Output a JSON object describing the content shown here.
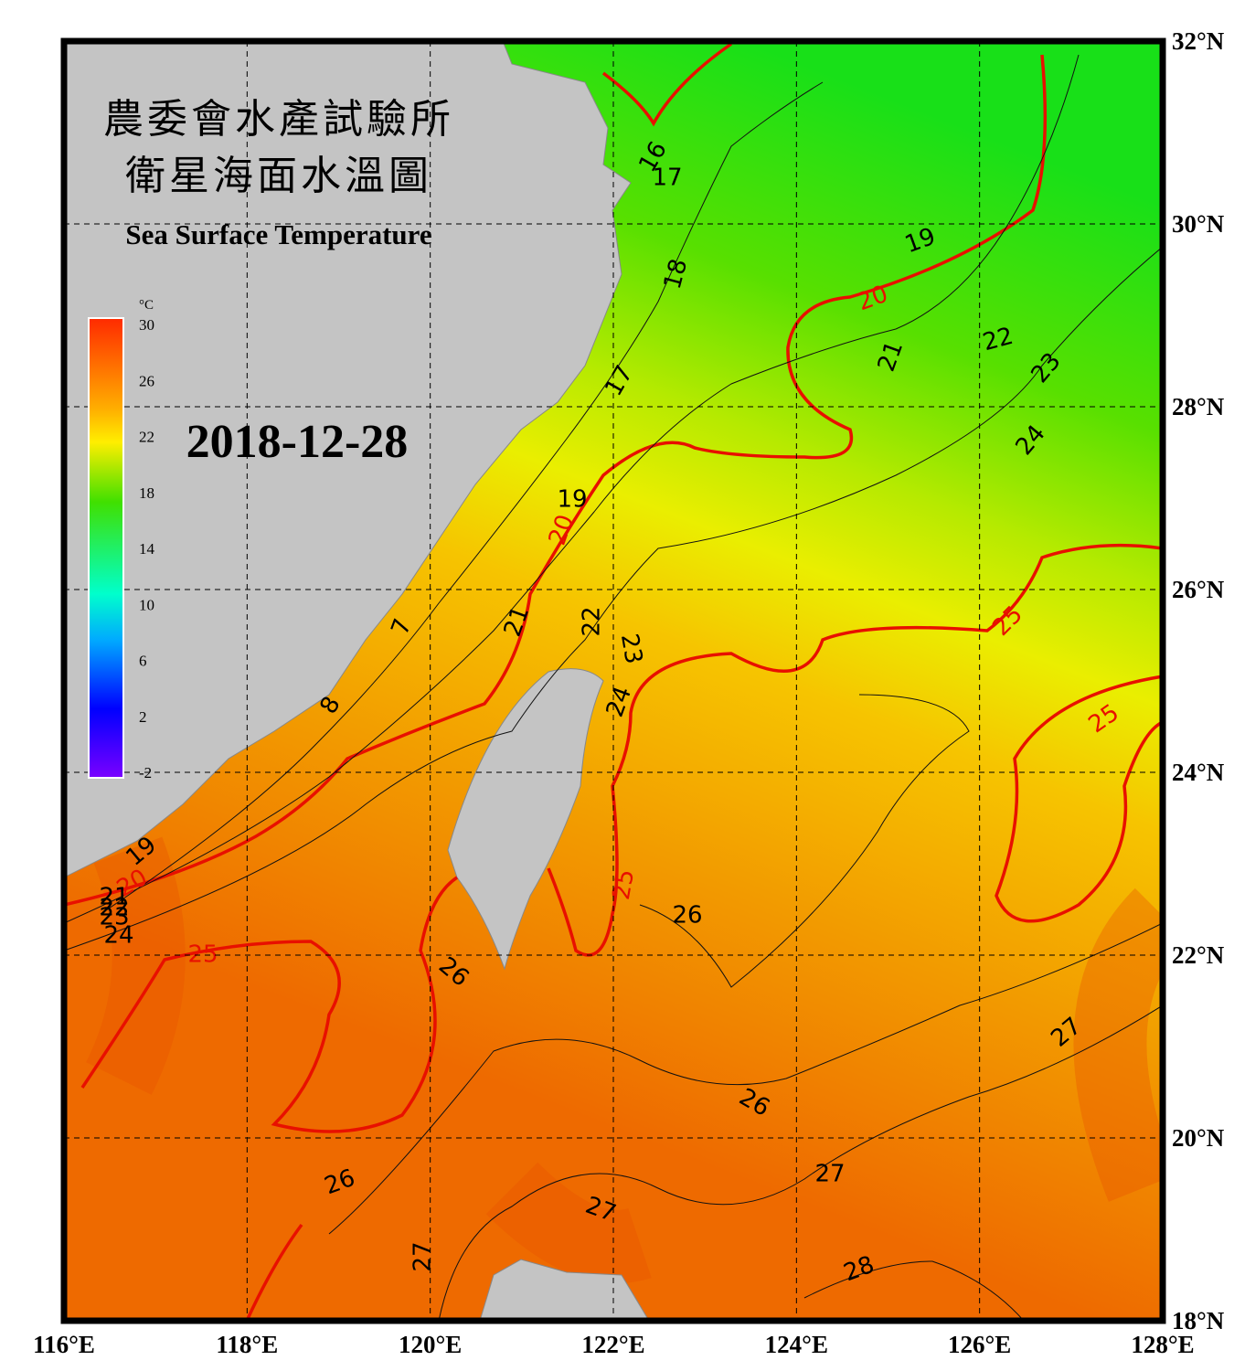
{
  "map": {
    "title_zh_1": "農委會水產試驗所",
    "title_zh_2": "衛星海面水溫圖",
    "title_en": "Sea Surface Temperature",
    "date": "2018-12-28",
    "colorbar": {
      "unit": "°C",
      "ticks": [
        30,
        26,
        22,
        18,
        14,
        10,
        6,
        2,
        -2
      ],
      "range": [
        -2,
        30
      ]
    },
    "lon_ticks": [
      {
        "value": 116,
        "label": "116°E"
      },
      {
        "value": 118,
        "label": "118°E"
      },
      {
        "value": 120,
        "label": "120°E"
      },
      {
        "value": 122,
        "label": "122°E"
      },
      {
        "value": 124,
        "label": "124°E"
      },
      {
        "value": 126,
        "label": "126°E"
      },
      {
        "value": 128,
        "label": "128°E"
      }
    ],
    "lat_ticks": [
      {
        "value": 32,
        "label": "32°N"
      },
      {
        "value": 30,
        "label": "30°N"
      },
      {
        "value": 28,
        "label": "28°N"
      },
      {
        "value": 26,
        "label": "26°N"
      },
      {
        "value": 24,
        "label": "24°N"
      },
      {
        "value": 22,
        "label": "22°N"
      },
      {
        "value": 20,
        "label": "20°N"
      },
      {
        "value": 18,
        "label": "18°N"
      }
    ],
    "lon_range": [
      116,
      128
    ],
    "lat_range": [
      18,
      32
    ],
    "contour_labels": [
      "16",
      "17",
      "18",
      "19",
      "21",
      "22",
      "23",
      "24",
      "17",
      "19",
      "21",
      "22",
      "23",
      "24",
      "8",
      "7",
      "19",
      "21",
      "22",
      "23",
      "24",
      "26",
      "26",
      "27",
      "26",
      "27",
      "26",
      "27",
      "27",
      "28"
    ],
    "isotherm_labels": [
      "20",
      "20",
      "25",
      "25",
      "25",
      "20",
      "25"
    ]
  }
}
